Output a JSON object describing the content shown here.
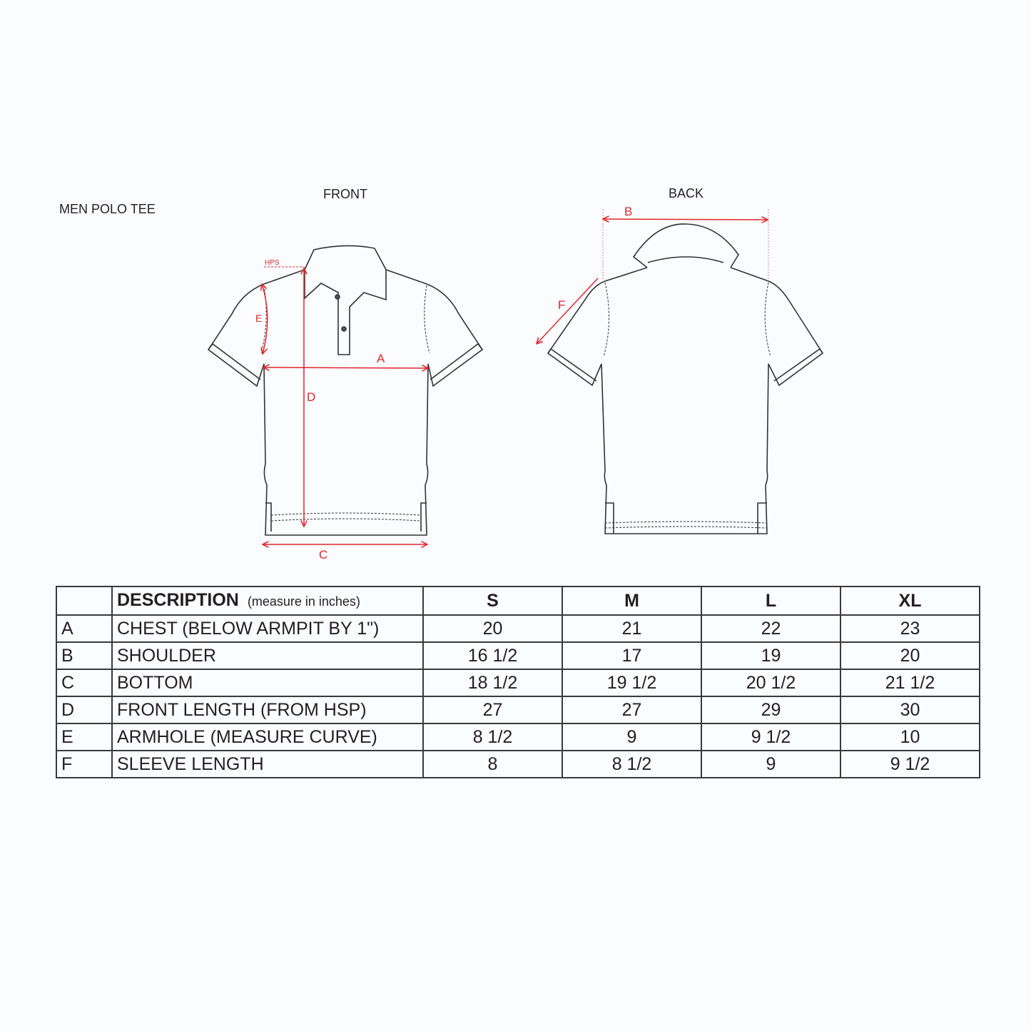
{
  "title": "MEN POLO TEE",
  "views": {
    "front": "FRONT",
    "back": "BACK"
  },
  "markers": {
    "hps": "HPS",
    "a": "A",
    "b": "B",
    "c": "C",
    "d": "D",
    "e": "E",
    "f": "F"
  },
  "colors": {
    "measure_line": "#e0262b",
    "outline": "#333333"
  },
  "table": {
    "header": {
      "description": "DESCRIPTION",
      "unit_note": "(measure in inches)",
      "sizes": [
        "S",
        "M",
        "L",
        "XL"
      ]
    },
    "rows": [
      {
        "code": "A",
        "description": "CHEST (BELOW ARMPIT BY 1\")",
        "values": [
          "20",
          "21",
          "22",
          "23"
        ]
      },
      {
        "code": "B",
        "description": "SHOULDER",
        "values": [
          "16 1/2",
          "17",
          "19",
          "20"
        ]
      },
      {
        "code": "C",
        "description": "BOTTOM",
        "values": [
          "18 1/2",
          "19 1/2",
          "20 1/2",
          "21 1/2"
        ]
      },
      {
        "code": "D",
        "description": "FRONT LENGTH (FROM HSP)",
        "values": [
          "27",
          "27",
          "29",
          "30"
        ]
      },
      {
        "code": "E",
        "description": "ARMHOLE (MEASURE CURVE)",
        "values": [
          "8 1/2",
          "9",
          "9 1/2",
          "10"
        ]
      },
      {
        "code": "F",
        "description": "SLEEVE LENGTH",
        "values": [
          "8",
          "8 1/2",
          "9",
          "9 1/2"
        ]
      }
    ]
  }
}
